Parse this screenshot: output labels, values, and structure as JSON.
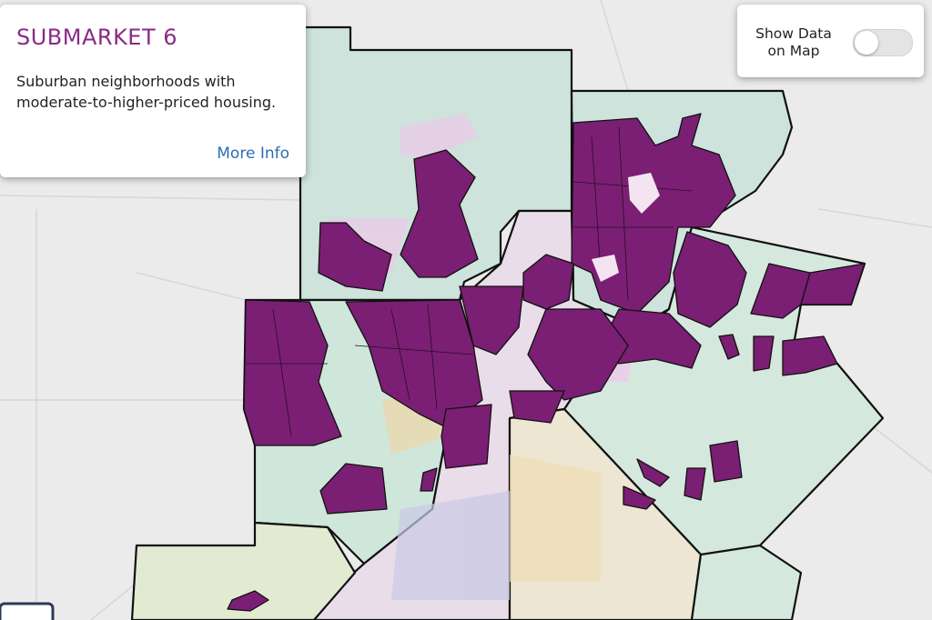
{
  "info_card": {
    "title": "SUBMARKET 6",
    "description": "Suburban neighborhoods with moderate-to-higher-priced housing.",
    "link": "More Info"
  },
  "toggle": {
    "label_lines": [
      "Show Data",
      "on Map"
    ]
  }
}
